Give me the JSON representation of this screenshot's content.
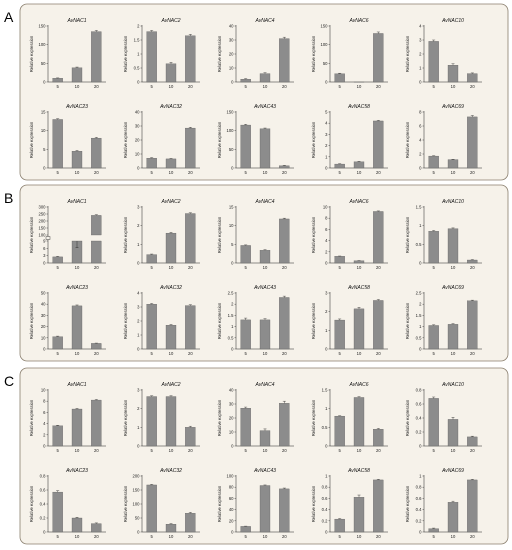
{
  "ylabel": "Relative expression",
  "categories": [
    "5",
    "10",
    "20"
  ],
  "colors": {
    "bar": "#8c8c8c",
    "panel_bg": "#f6f2ea",
    "panel_border": "#8a7f6e"
  },
  "panels": [
    {
      "letter": "A",
      "charts": [
        {
          "title": "AvNAC1",
          "ylim": [
            0,
            150
          ],
          "ticks": [
            0,
            50,
            100,
            150
          ],
          "values": [
            10,
            38,
            135
          ],
          "errors": [
            1,
            2,
            3
          ]
        },
        {
          "title": "AvNAC2",
          "ylim": [
            0,
            2.0
          ],
          "ticks": [
            0,
            0.5,
            1.0,
            1.5,
            2.0
          ],
          "values": [
            1.8,
            0.65,
            1.65
          ],
          "errors": [
            0.04,
            0.05,
            0.05
          ]
        },
        {
          "title": "AvNAC4",
          "ylim": [
            0,
            40
          ],
          "ticks": [
            0,
            10,
            20,
            30,
            40
          ],
          "values": [
            2,
            6,
            31
          ],
          "errors": [
            0.4,
            0.6,
            1.0
          ]
        },
        {
          "title": "AvNAC6",
          "ylim": [
            0,
            150
          ],
          "ticks": [
            0,
            50,
            100,
            150
          ],
          "values": [
            22,
            0,
            130
          ],
          "errors": [
            1.5,
            0,
            4
          ]
        },
        {
          "title": "AvNAC10",
          "ylim": [
            0,
            4
          ],
          "ticks": [
            0,
            1,
            2,
            3,
            4
          ],
          "values": [
            2.9,
            1.2,
            0.6
          ],
          "errors": [
            0.1,
            0.1,
            0.05
          ]
        },
        {
          "title": "AvNAC23",
          "ylim": [
            0,
            15
          ],
          "ticks": [
            0,
            5,
            10,
            15
          ],
          "values": [
            13,
            4.5,
            8
          ],
          "errors": [
            0.2,
            0.2,
            0.2
          ]
        },
        {
          "title": "AvNAC32",
          "ylim": [
            0,
            40
          ],
          "ticks": [
            0,
            10,
            20,
            30,
            40
          ],
          "values": [
            7,
            6.5,
            28.5
          ],
          "errors": [
            0.4,
            0.3,
            0.6
          ]
        },
        {
          "title": "AvNAC43",
          "ylim": [
            0,
            150
          ],
          "ticks": [
            0,
            50,
            100,
            150
          ],
          "values": [
            115,
            105,
            6
          ],
          "errors": [
            2,
            2,
            1
          ]
        },
        {
          "title": "AvNAC58",
          "ylim": [
            0,
            5
          ],
          "ticks": [
            0,
            1,
            2,
            3,
            4,
            5
          ],
          "values": [
            0.35,
            0.55,
            4.2
          ],
          "errors": [
            0.03,
            0.04,
            0.05
          ]
        },
        {
          "title": "AvNAC69",
          "ylim": [
            0,
            8
          ],
          "ticks": [
            0,
            2,
            4,
            6,
            8
          ],
          "values": [
            1.7,
            1.2,
            7.3
          ],
          "errors": [
            0.05,
            0.05,
            0.2
          ]
        }
      ]
    },
    {
      "letter": "B",
      "charts": [
        {
          "title": "AvNAC1",
          "broken": true,
          "ticks_low": [
            0,
            3,
            6,
            9
          ],
          "ticks_high": [
            100,
            150,
            200,
            250,
            300
          ],
          "tick_labels": [
            "0",
            "3",
            "6",
            "9",
            "100",
            "150",
            "200",
            "250",
            "300"
          ],
          "values": [
            2.5,
            9,
            240
          ],
          "errors": [
            0.2,
            0.3,
            5
          ]
        },
        {
          "title": "AvNAC2",
          "ylim": [
            0,
            3
          ],
          "ticks": [
            0,
            1,
            2,
            3
          ],
          "values": [
            0.45,
            1.6,
            2.65
          ],
          "errors": [
            0.03,
            0.04,
            0.04
          ]
        },
        {
          "title": "AvNAC4",
          "ylim": [
            0,
            15
          ],
          "ticks": [
            0,
            5,
            10,
            15
          ],
          "values": [
            4.7,
            3.4,
            11.8
          ],
          "errors": [
            0.15,
            0.15,
            0.2
          ]
        },
        {
          "title": "AvNAC6",
          "ylim": [
            0,
            10
          ],
          "ticks": [
            0,
            2,
            4,
            6,
            8,
            10
          ],
          "values": [
            1.2,
            0.4,
            9.2
          ],
          "errors": [
            0.05,
            0.03,
            0.1
          ]
        },
        {
          "title": "AvNAC10",
          "ylim": [
            0,
            1.5
          ],
          "ticks": [
            0,
            0.5,
            1.0,
            1.5
          ],
          "values": [
            0.85,
            0.92,
            0.08
          ],
          "errors": [
            0.02,
            0.02,
            0.01
          ]
        },
        {
          "title": "AvNAC23",
          "ylim": [
            0,
            50
          ],
          "ticks": [
            0,
            10,
            20,
            30,
            40,
            50
          ],
          "values": [
            11,
            38.5,
            5
          ],
          "errors": [
            0.5,
            0.8,
            0.3
          ]
        },
        {
          "title": "AvNAC32",
          "ylim": [
            0,
            4
          ],
          "ticks": [
            0,
            1,
            2,
            3,
            4
          ],
          "values": [
            3.2,
            1.7,
            3.1
          ],
          "errors": [
            0.05,
            0.05,
            0.06
          ]
        },
        {
          "title": "AvNAC43",
          "ylim": [
            0,
            2.5
          ],
          "ticks": [
            0,
            0.5,
            1.0,
            1.5,
            2.0,
            2.5
          ],
          "values": [
            1.3,
            1.3,
            2.3
          ],
          "errors": [
            0.08,
            0.05,
            0.06
          ]
        },
        {
          "title": "AvNAC58",
          "ylim": [
            0,
            3
          ],
          "ticks": [
            0,
            1,
            2,
            3
          ],
          "values": [
            1.55,
            2.15,
            2.6
          ],
          "errors": [
            0.06,
            0.08,
            0.05
          ]
        },
        {
          "title": "AvNAC69",
          "ylim": [
            0,
            2.5
          ],
          "ticks": [
            0,
            0.5,
            1.0,
            1.5,
            2.0,
            2.5
          ],
          "values": [
            1.05,
            1.1,
            2.15
          ],
          "errors": [
            0.03,
            0.03,
            0.03
          ]
        }
      ]
    },
    {
      "letter": "C",
      "charts": [
        {
          "title": "AvNAC1",
          "ylim": [
            0,
            10
          ],
          "ticks": [
            0,
            2,
            4,
            6,
            8,
            10
          ],
          "values": [
            3.6,
            6.6,
            8.2
          ],
          "errors": [
            0.1,
            0.1,
            0.1
          ]
        },
        {
          "title": "AvNAC2",
          "ylim": [
            0,
            3
          ],
          "ticks": [
            0,
            1,
            2,
            3
          ],
          "values": [
            2.65,
            2.65,
            1.0
          ],
          "errors": [
            0.04,
            0.04,
            0.06
          ]
        },
        {
          "title": "AvNAC4",
          "ylim": [
            0,
            40
          ],
          "ticks": [
            0,
            10,
            20,
            30,
            40
          ],
          "values": [
            27,
            11,
            30.5
          ],
          "errors": [
            0.8,
            1.2,
            1.5
          ]
        },
        {
          "title": "AvNAC6",
          "ylim": [
            0,
            1.5
          ],
          "ticks": [
            0,
            0.5,
            1.0,
            1.5
          ],
          "values": [
            0.8,
            1.3,
            0.45
          ],
          "errors": [
            0.01,
            0.02,
            0.02
          ]
        },
        {
          "title": "AvNAC10",
          "ylim": [
            0,
            0.8
          ],
          "ticks": [
            0,
            0.2,
            0.4,
            0.6,
            0.8
          ],
          "values": [
            0.68,
            0.38,
            0.13
          ],
          "errors": [
            0.02,
            0.03,
            0.01
          ]
        },
        {
          "title": "AvNAC23",
          "ylim": [
            0,
            0.8
          ],
          "ticks": [
            0,
            0.2,
            0.4,
            0.6,
            0.8
          ],
          "values": [
            0.57,
            0.2,
            0.12
          ],
          "errors": [
            0.02,
            0.01,
            0.01
          ]
        },
        {
          "title": "AvNAC32",
          "ylim": [
            0,
            200
          ],
          "ticks": [
            0,
            50,
            100,
            150,
            200
          ],
          "values": [
            168,
            28,
            67
          ],
          "errors": [
            2,
            2,
            3
          ]
        },
        {
          "title": "AvNAC43",
          "ylim": [
            0,
            100
          ],
          "ticks": [
            0,
            20,
            40,
            60,
            80,
            100
          ],
          "values": [
            10,
            83,
            77
          ],
          "errors": [
            0.5,
            1,
            1.5
          ]
        },
        {
          "title": "AvNAC58",
          "ylim": [
            0,
            1.0
          ],
          "ticks": [
            0,
            0.2,
            0.4,
            0.6,
            0.8,
            1.0
          ],
          "values": [
            0.23,
            0.62,
            0.93
          ],
          "errors": [
            0.01,
            0.04,
            0.01
          ]
        },
        {
          "title": "AvNAC69",
          "ylim": [
            0,
            1.0
          ],
          "ticks": [
            0,
            0.2,
            0.4,
            0.6,
            0.8,
            1.0
          ],
          "values": [
            0.06,
            0.53,
            0.93
          ],
          "errors": [
            0.01,
            0.02,
            0.01
          ]
        }
      ]
    }
  ]
}
